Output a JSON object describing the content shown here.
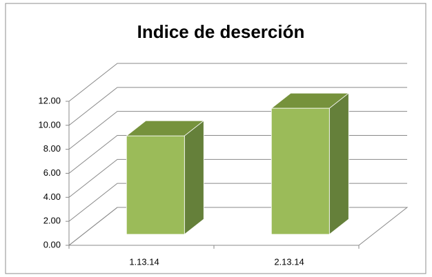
{
  "chart_data": {
    "type": "bar3d",
    "title": "Indice de deserción",
    "categories": [
      "1.13.14",
      "2.13.14"
    ],
    "values": [
      8.2,
      10.5
    ],
    "color": "#9bbb59",
    "ylim": [
      0,
      12
    ],
    "yticks": [
      {
        "value": 0,
        "label": "0.00"
      },
      {
        "value": 2,
        "label": "2.00"
      },
      {
        "value": 4,
        "label": "4.00"
      },
      {
        "value": 6,
        "label": "6.00"
      },
      {
        "value": 8,
        "label": "8.00"
      },
      {
        "value": 10,
        "label": "10.00"
      },
      {
        "value": 12,
        "label": "12.00"
      }
    ],
    "grid": true
  }
}
